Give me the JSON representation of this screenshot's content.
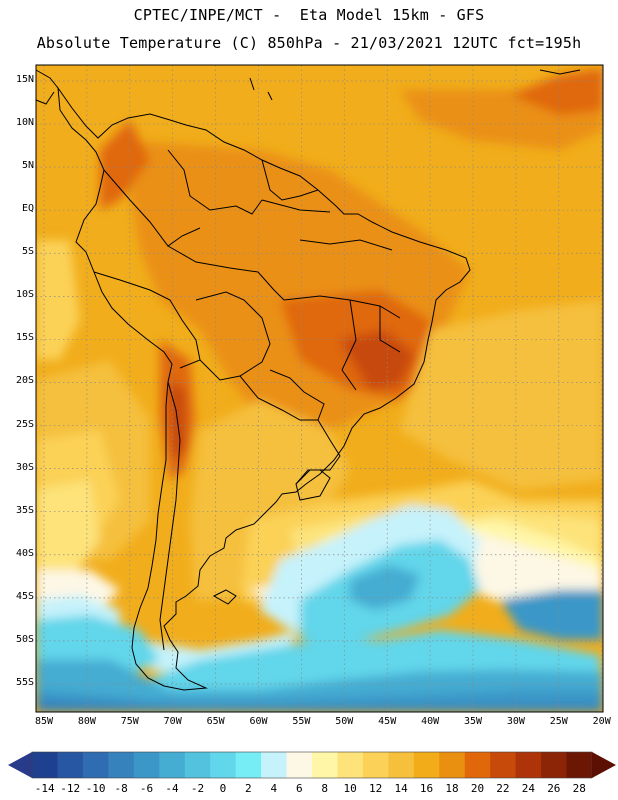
{
  "title_line1": "CPTEC/INPE/MCT -  Eta Model 15km - GFS",
  "title_line2": "Absolute Temperature (C) 850hPa - 21/03/2021 12UTC fct=195h",
  "lat_labels": [
    "15N",
    "10N",
    "5N",
    "EQ",
    "5S",
    "10S",
    "15S",
    "20S",
    "25S",
    "30S",
    "35S",
    "40S",
    "45S",
    "50S",
    "55S"
  ],
  "lon_labels": [
    "85W",
    "80W",
    "75W",
    "70W",
    "65W",
    "60W",
    "55W",
    "50W",
    "45W",
    "40W",
    "35W",
    "30W",
    "25W",
    "20W"
  ],
  "colorbar_labels": [
    "-14",
    "-12",
    "-10",
    "-8",
    "-6",
    "-4",
    "-2",
    "0",
    "2",
    "4",
    "6",
    "8",
    "10",
    "12",
    "14",
    "16",
    "18",
    "20",
    "22",
    "24",
    "26",
    "28"
  ],
  "colorbar_colors": [
    "#1f3f8f",
    "#2756a3",
    "#2f6cb2",
    "#3582bd",
    "#3b97c7",
    "#45acd2",
    "#53c2df",
    "#62d6ea",
    "#76ecf4",
    "#c6f2fb",
    "#fdf7e5",
    "#fff6a8",
    "#fde37a",
    "#fbd157",
    "#f6c03c",
    "#f2ab19",
    "#ea9010",
    "#e0680b",
    "#c84a0a",
    "#ac3408",
    "#8c2406",
    "#6c1604"
  ],
  "colorbar_arrow_colors": {
    "left": "#283a8a",
    "right": "#5c0f03"
  },
  "field_colors": {
    "base": "#f1ad1b",
    "warm": "#ea9012",
    "hot": "#e0680b",
    "hotter": "#c84a0a",
    "mid": "#f5c03c",
    "light": "#fbd157",
    "pale": "#fde37a",
    "paler": "#fff6a8",
    "cream": "#fdf7e5",
    "ice": "#c6f2fb",
    "cyan": "#62d6ea",
    "aqua": "#45acd2",
    "blue": "#3b97c7",
    "deep": "#3582bd"
  }
}
